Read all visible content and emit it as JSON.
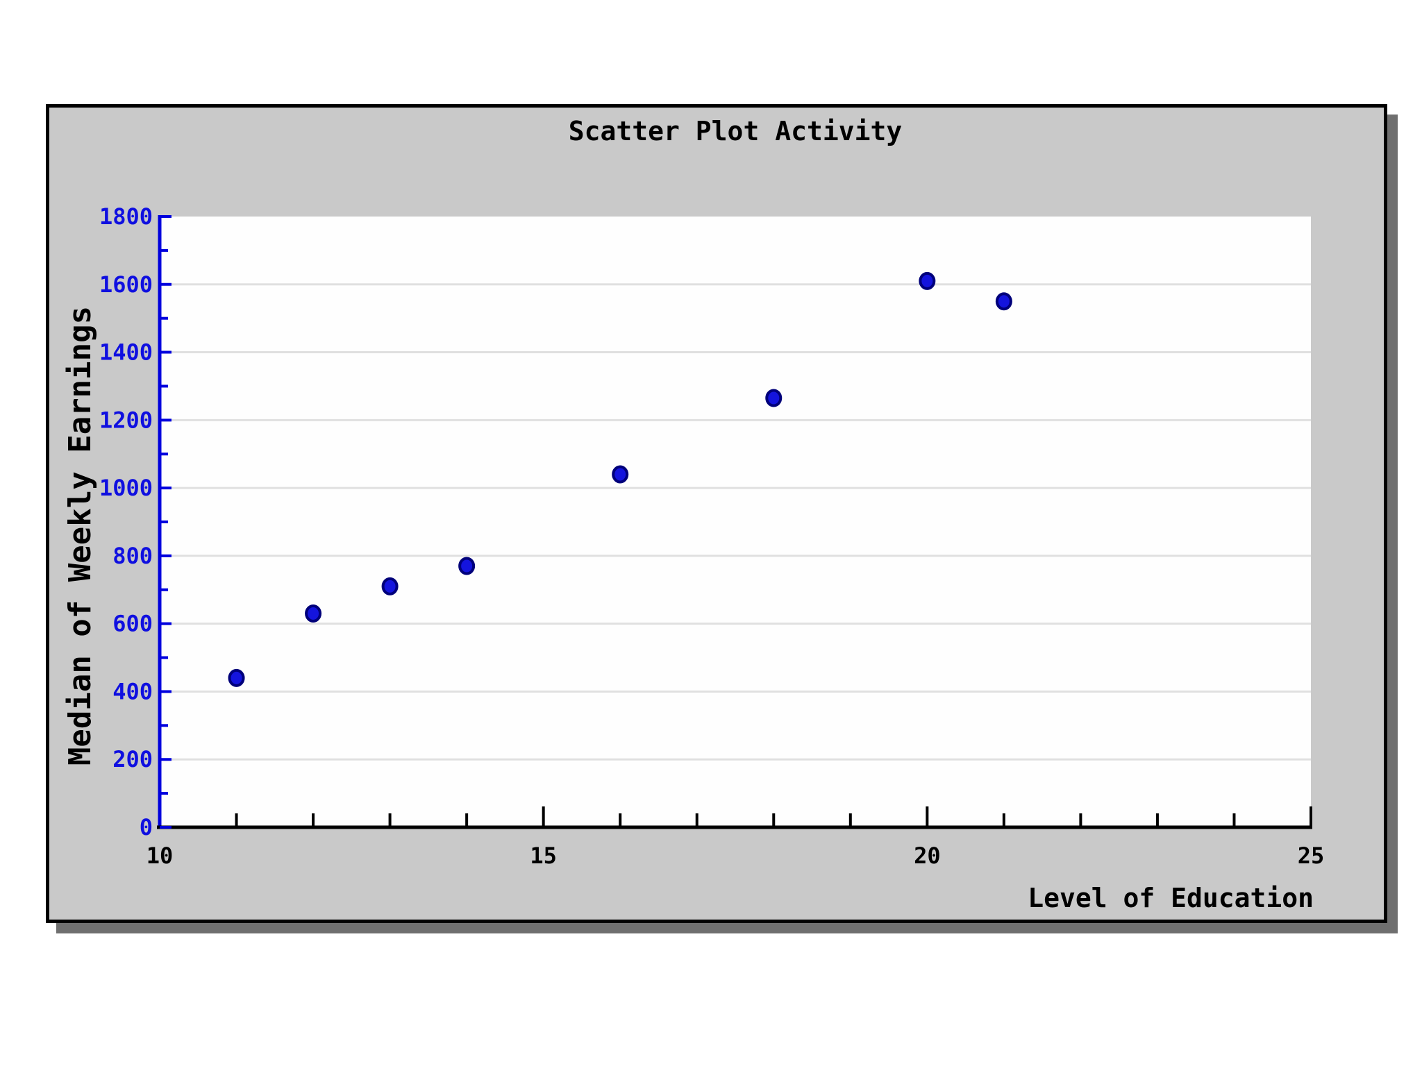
{
  "window": {
    "background_color": "#c9c9c9",
    "border_color": "#000000",
    "shadow_color": "#6f6f6f",
    "page_background": "#ffffff"
  },
  "chart_data": {
    "type": "scatter",
    "title": "Scatter Plot Activity",
    "xlabel": "Level of Education",
    "ylabel": "Median of Weekly Earnings",
    "xlim": [
      10,
      25
    ],
    "ylim": [
      0,
      1800
    ],
    "x_major_ticks": [
      10,
      15,
      20,
      25
    ],
    "x_minor_step": 1,
    "y_major_step": 200,
    "y_minor_step": 100,
    "grid": "horizontal",
    "legend": "none",
    "points": [
      [
        11,
        440
      ],
      [
        12,
        630
      ],
      [
        13,
        710
      ],
      [
        14,
        770
      ],
      [
        16,
        1040
      ],
      [
        18,
        1265
      ],
      [
        20,
        1610
      ],
      [
        21,
        1550
      ]
    ],
    "colors": {
      "plot_background": "#fefefe",
      "gridline": "#e0e0e0",
      "y_axis": "#0000dd",
      "y_tick_label": "#0f0fe0",
      "x_axis": "#000000",
      "x_tick_label": "#000000",
      "marker_fill": "#1414dd",
      "marker_stroke": "#00007a"
    }
  }
}
